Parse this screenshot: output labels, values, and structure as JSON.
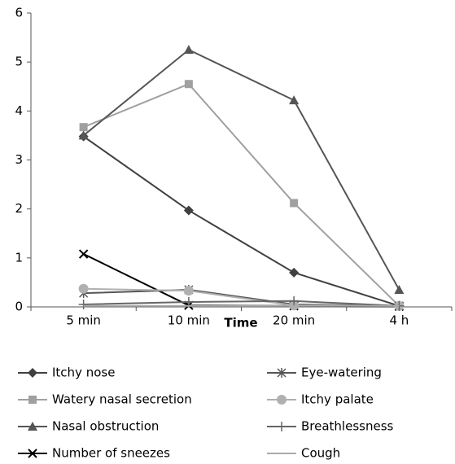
{
  "chart_data": {
    "type": "line",
    "x_label": "Time",
    "categories": [
      "5 min",
      "10 min",
      "20 min",
      "4 h"
    ],
    "ylim": [
      0,
      6
    ],
    "yticks": [
      0,
      1,
      2,
      3,
      4,
      5,
      6
    ],
    "grid": false,
    "series": [
      {
        "name": "Itchy nose",
        "color": "#404040",
        "marker": "diamond",
        "values": [
          3.48,
          1.97,
          0.7,
          0.02
        ]
      },
      {
        "name": "Watery nasal secretion",
        "color": "#a0a0a0",
        "marker": "square",
        "values": [
          3.67,
          4.55,
          2.12,
          0.02
        ]
      },
      {
        "name": "Nasal obstruction",
        "color": "#555555",
        "marker": "triangle",
        "values": [
          3.5,
          5.25,
          4.22,
          0.35
        ]
      },
      {
        "name": "Number of sneezes",
        "color": "#000000",
        "marker": "x",
        "values": [
          1.08,
          0.03,
          0.02,
          0.01
        ]
      },
      {
        "name": "Eye-watering",
        "color": "#555555",
        "marker": "asterisk",
        "values": [
          0.28,
          0.35,
          0.05,
          0.02
        ]
      },
      {
        "name": "Itchy palate",
        "color": "#b0b0b0",
        "marker": "circle",
        "values": [
          0.37,
          0.33,
          0.03,
          0.02
        ]
      },
      {
        "name": "Breathlessness",
        "color": "#666666",
        "marker": "plus",
        "values": [
          0.05,
          0.1,
          0.12,
          0.02
        ]
      },
      {
        "name": "Cough",
        "color": "#aaaaaa",
        "marker": "none",
        "values": [
          0.02,
          0.02,
          0.02,
          0.02
        ]
      }
    ]
  }
}
